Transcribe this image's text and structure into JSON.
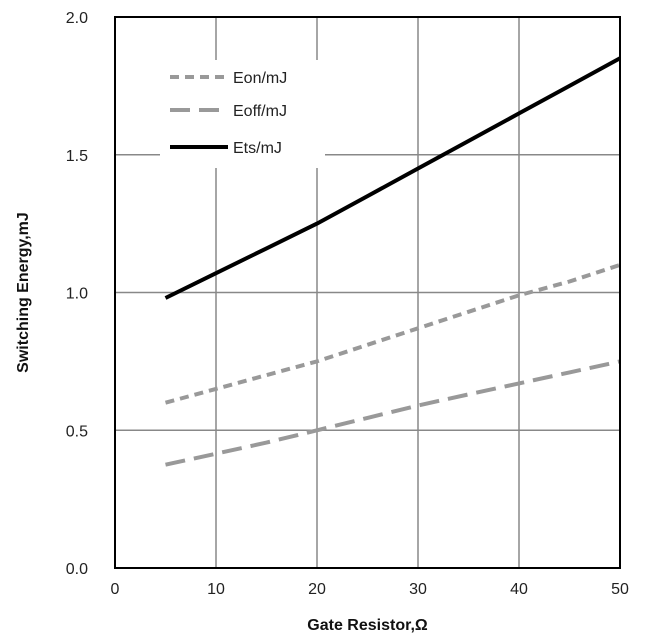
{
  "chart_data": {
    "type": "line",
    "xlabel": "Gate Resistor,Ω",
    "ylabel": "Switching Energy,mJ",
    "xlim": [
      0,
      50
    ],
    "ylim": [
      0,
      2.0
    ],
    "x_ticks": [
      "0",
      "10",
      "20",
      "30",
      "40",
      "50"
    ],
    "y_ticks": [
      "0.0",
      "0.5",
      "1.0",
      "1.5",
      "2.0"
    ],
    "grid": true,
    "legend_position": "top-left",
    "x": [
      5,
      10,
      15,
      20,
      25,
      30,
      35,
      40,
      45,
      50
    ],
    "series": [
      {
        "name": "Eon/mJ",
        "style": "short-dash",
        "color": "#999999",
        "values": [
          0.6,
          0.65,
          0.7,
          0.75,
          0.81,
          0.87,
          0.93,
          0.99,
          1.04,
          1.1
        ]
      },
      {
        "name": "Eoff/mJ",
        "style": "long-dash",
        "color": "#999999",
        "values": [
          0.375,
          0.415,
          0.455,
          0.5,
          0.545,
          0.59,
          0.63,
          0.67,
          0.71,
          0.75
        ]
      },
      {
        "name": "Ets/mJ",
        "style": "solid",
        "color": "#000000",
        "values": [
          0.98,
          1.07,
          1.16,
          1.25,
          1.35,
          1.45,
          1.55,
          1.65,
          1.75,
          1.85
        ]
      }
    ]
  }
}
